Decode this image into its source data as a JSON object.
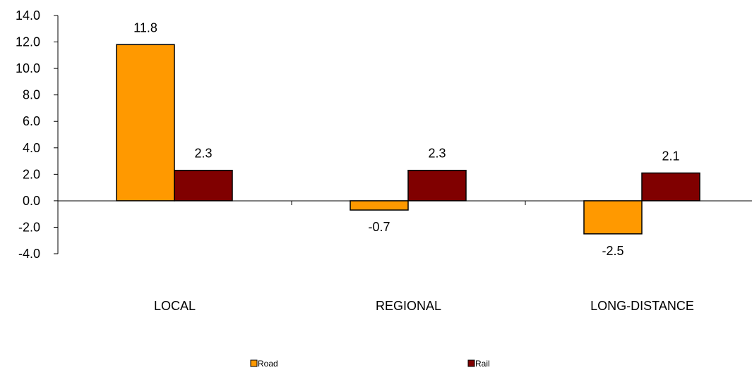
{
  "chart_data": {
    "type": "bar",
    "categories": [
      "LOCAL",
      "REGIONAL",
      "LONG-DISTANCE"
    ],
    "series": [
      {
        "name": "Road",
        "values": [
          11.8,
          -0.7,
          -2.5
        ],
        "color": "#FF9900"
      },
      {
        "name": "Rail",
        "values": [
          2.3,
          2.3,
          2.1
        ],
        "color": "#800000"
      }
    ],
    "ylim": [
      -4.0,
      14.0
    ],
    "yticks": [
      -4.0,
      -2.0,
      0.0,
      2.0,
      4.0,
      6.0,
      8.0,
      10.0,
      12.0,
      14.0
    ],
    "ytick_decimals": 1,
    "grid": false,
    "legend_position": "bottom",
    "title": "",
    "xlabel": "",
    "ylabel": ""
  }
}
